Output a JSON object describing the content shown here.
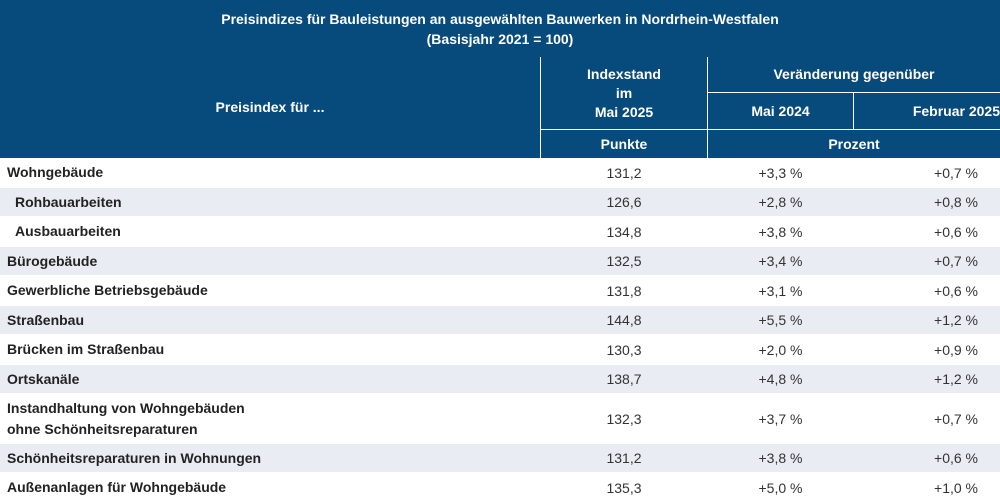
{
  "title": {
    "line1": "Preisindizes für Bauleistungen an ausgewählten Bauwerken in Nordrhein-Westfalen",
    "line2": "(Basisjahr 2021 = 100)"
  },
  "header": {
    "preisindex": "Preisindex für ...",
    "indexstand_line1": "Indexstand",
    "indexstand_line2": "im",
    "indexstand_line3": "Mai 2025",
    "punkte": "Punkte",
    "veraenderung": "Veränderung gegenüber",
    "mai2024": "Mai 2024",
    "februar2025": "Februar 2025",
    "prozent": "Prozent"
  },
  "rows": [
    {
      "label": "Wohngebäude",
      "index": "131,2",
      "vj": "+3,3 %",
      "vq": "+0,7 %"
    },
    {
      "label": "Rohbauarbeiten",
      "index": "126,6",
      "vj": "+2,8 %",
      "vq": "+0,8 %"
    },
    {
      "label": "Ausbauarbeiten",
      "index": "134,8",
      "vj": "+3,8 %",
      "vq": "+0,6 %"
    },
    {
      "label": "Bürogebäude",
      "index": "132,5",
      "vj": "+3,4 %",
      "vq": "+0,7 %"
    },
    {
      "label": "Gewerbliche Betriebsgebäude",
      "index": "131,8",
      "vj": "+3,1 %",
      "vq": "+0,6 %"
    },
    {
      "label": "Straßenbau",
      "index": "144,8",
      "vj": "+5,5 %",
      "vq": "+1,2 %"
    },
    {
      "label": "Brücken im Straßenbau",
      "index": "130,3",
      "vj": "+2,0 %",
      "vq": "+0,9 %"
    },
    {
      "label": "Ortskanäle",
      "index": "138,7",
      "vj": "+4,8 %",
      "vq": "+1,2 %"
    },
    {
      "label_line1": "Instandhaltung von Wohngebäuden",
      "label_line2": "ohne Schönheitsreparaturen",
      "index": "132,3",
      "vj": "+3,7 %",
      "vq": "+0,7 %"
    },
    {
      "label": "Schönheitsreparaturen in Wohnungen",
      "index": "131,2",
      "vj": "+3,8 %",
      "vq": "+0,6 %"
    },
    {
      "label": "Außenanlagen für Wohngebäude",
      "index": "135,3",
      "vj": "+5,0 %",
      "vq": "+1,0 %"
    }
  ]
}
